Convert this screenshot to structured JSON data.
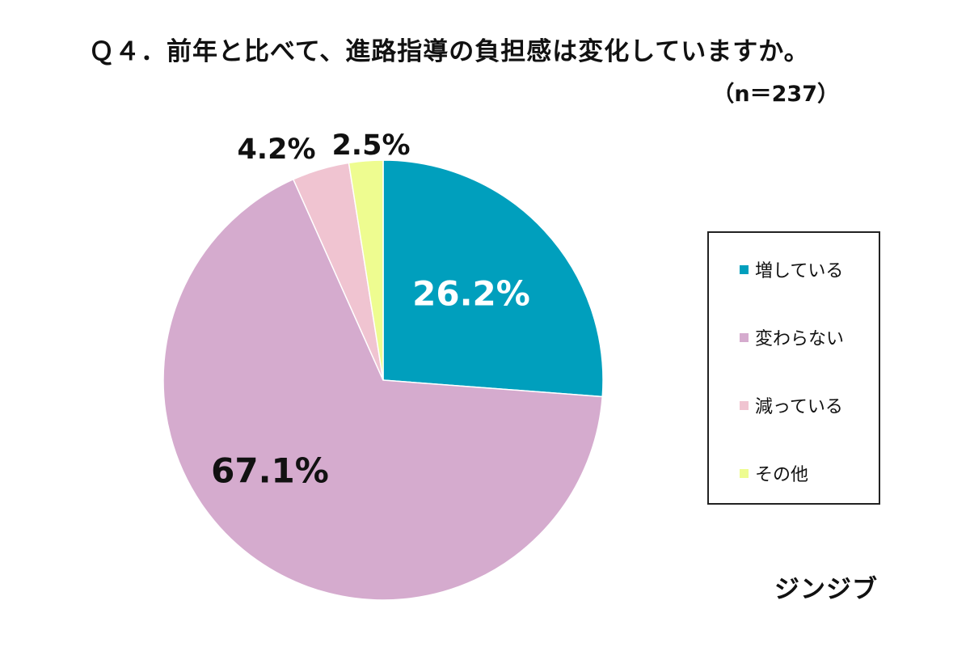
{
  "title": "Ｑ４．前年と比べて、進路指導の負担感は変化していますか。",
  "sample_size": "（n＝237）",
  "source": "ジンジブ",
  "chart_data": {
    "type": "pie",
    "title": "Ｑ４．前年と比べて、進路指導の負担感は変化していますか。",
    "categories": [
      "増している",
      "変わらない",
      "減っている",
      "その他"
    ],
    "values": [
      26.2,
      67.1,
      4.2,
      2.5
    ],
    "value_labels": [
      "26.2%",
      "67.1%",
      "4.2%",
      "2.5%"
    ],
    "colors": [
      "#009fbd",
      "#d5abce",
      "#f0c4d1",
      "#eefc90"
    ],
    "legend_placement": "right",
    "start": "top, clockwise"
  }
}
